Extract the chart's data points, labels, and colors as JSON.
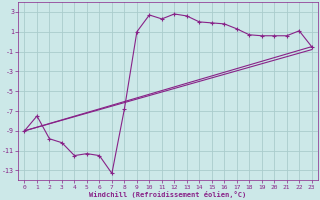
{
  "xlabel": "Windchill (Refroidissement éolien,°C)",
  "bg_color": "#cce8e8",
  "grid_color": "#aacccc",
  "line_color": "#882288",
  "spine_color": "#882288",
  "xlim": [
    -0.5,
    23.5
  ],
  "ylim": [
    -14,
    4
  ],
  "yticks": [
    3,
    1,
    -1,
    -3,
    -5,
    -7,
    -9,
    -11,
    -13
  ],
  "xticks": [
    0,
    1,
    2,
    3,
    4,
    5,
    6,
    7,
    8,
    9,
    10,
    11,
    12,
    13,
    14,
    15,
    16,
    17,
    18,
    19,
    20,
    21,
    22,
    23
  ],
  "curve1_x": [
    0,
    1,
    2,
    3,
    4,
    5,
    6,
    7,
    8,
    9,
    10,
    11,
    12,
    13,
    14,
    15,
    16,
    17,
    18,
    19,
    20,
    21,
    22,
    23
  ],
  "curve1_y": [
    -9.0,
    -7.5,
    -9.8,
    -10.2,
    -11.5,
    -11.3,
    -11.5,
    -13.3,
    -6.8,
    1.0,
    2.7,
    2.3,
    2.8,
    2.6,
    2.0,
    1.9,
    1.8,
    1.3,
    0.7,
    0.6,
    0.6,
    0.6,
    1.1,
    -0.5
  ],
  "line1_x": [
    0,
    23
  ],
  "line1_y": [
    -9.0,
    -0.5
  ],
  "line2_x": [
    0,
    23
  ],
  "line2_y": [
    -9.0,
    -0.8
  ],
  "xlabel_fontsize": 5.0,
  "tick_fontsize": 4.5,
  "linewidth": 0.8,
  "markersize": 2.5
}
